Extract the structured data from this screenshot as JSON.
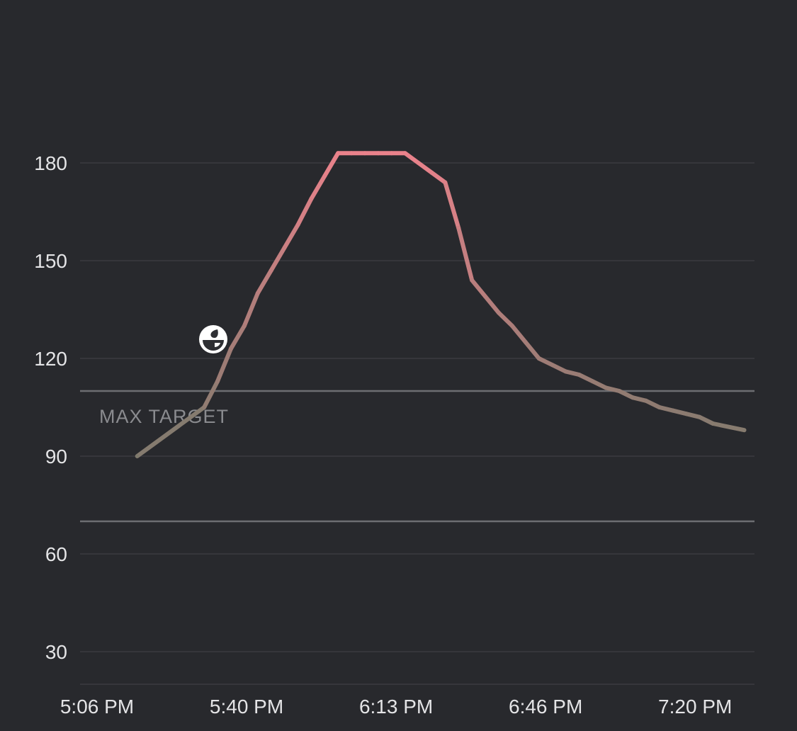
{
  "chart_data": {
    "type": "line",
    "title": "",
    "xlabel": "",
    "ylabel": "",
    "x_unit": "minutes after 5:06 PM",
    "x": [
      9,
      24,
      27,
      30,
      33,
      36,
      39,
      42,
      45,
      48,
      51,
      54,
      57,
      60,
      63,
      66,
      69,
      72,
      75,
      78,
      81,
      84,
      87,
      90,
      93,
      96,
      99,
      102,
      105,
      108,
      111,
      114,
      117,
      120,
      123,
      126,
      129,
      132,
      135,
      138,
      145
    ],
    "values": [
      90,
      105,
      113,
      123,
      130,
      140,
      147,
      154,
      161,
      169,
      176,
      183,
      183,
      183,
      183,
      183,
      183,
      180,
      177,
      174,
      160,
      144,
      139,
      134,
      130,
      125,
      120,
      118,
      116,
      115,
      113,
      111,
      110,
      108,
      107,
      105,
      104,
      103,
      102,
      100,
      98
    ],
    "ylim": [
      20,
      195
    ],
    "yticks": [
      30,
      60,
      90,
      120,
      150,
      180
    ],
    "ytick_labels": [
      "30",
      "60",
      "90",
      "120",
      "150",
      "180"
    ],
    "xticks": [
      0,
      33.5,
      67,
      100.5,
      134
    ],
    "xtick_labels": [
      "5:06 PM",
      "5:40 PM",
      "6:13 PM",
      "6:46 PM",
      "7:20 PM"
    ],
    "grid": true,
    "target_range": {
      "max": 110,
      "min": 70,
      "max_label": "MAX TARGET"
    },
    "annotations": [
      {
        "icon": "meal-icon",
        "x": 26,
        "y": 126
      }
    ],
    "colors": {
      "low": "#7c7a6c",
      "high": "#ea828b",
      "background": "#28292d",
      "grid": "#3a3b40",
      "target": "#6d6e72"
    }
  }
}
